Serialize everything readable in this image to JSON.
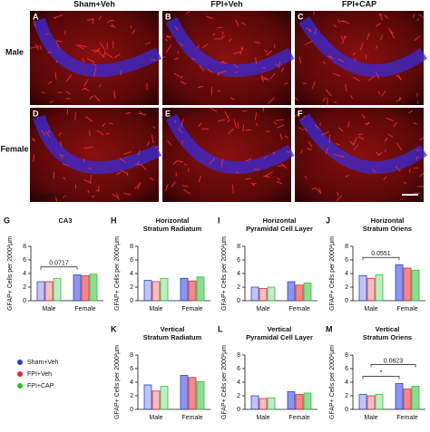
{
  "figure": {
    "columns": [
      "Sham+Veh",
      "FPI+Veh",
      "FPI+CAP"
    ],
    "rows": [
      "Male",
      "Female"
    ],
    "panels": [
      "A",
      "B",
      "C",
      "D",
      "E",
      "F"
    ],
    "stain": "GFAP/DAPI"
  },
  "legend": [
    {
      "name": "Sham+Veh",
      "color": "#2b3fd6"
    },
    {
      "name": "FPI+Veh",
      "color": "#e02a2a"
    },
    {
      "name": "FPI+CAP",
      "color": "#2fbf3a"
    }
  ],
  "chart_data": [
    {
      "type": "bar",
      "panel": "G",
      "title": [
        "CA3"
      ],
      "y_label": "GFAP+ Cells per 2000²μm",
      "categories": [
        "Male",
        "Female"
      ],
      "series": [
        {
          "values": [
            2.8,
            3.8
          ]
        },
        {
          "values": [
            2.8,
            3.7
          ]
        },
        {
          "values": [
            3.3,
            3.9
          ]
        }
      ],
      "ylim": [
        0,
        8
      ],
      "yticks": [
        0,
        2,
        4,
        6,
        8
      ],
      "brackets": [
        {
          "label": "0.0717",
          "from": [
            0,
            0
          ],
          "to": [
            0,
            1
          ]
        }
      ]
    },
    {
      "type": "bar",
      "panel": "H",
      "title": [
        "Horizontal",
        "Stratum Radiatum"
      ],
      "y_label": "GFAP+ Cells per 2000²μm",
      "categories": [
        "Male",
        "Female"
      ],
      "series": [
        {
          "values": [
            3.0,
            3.3
          ]
        },
        {
          "values": [
            2.8,
            2.9
          ]
        },
        {
          "values": [
            3.3,
            3.5
          ]
        }
      ],
      "ylim": [
        0,
        8
      ],
      "yticks": [
        0,
        2,
        4,
        6,
        8
      ]
    },
    {
      "type": "bar",
      "panel": "I",
      "title": [
        "Horizontal",
        "Pyramidal Cell Layer"
      ],
      "y_label": "GFAP+ Cells per 2000²μm",
      "categories": [
        "Male",
        "Female"
      ],
      "series": [
        {
          "values": [
            2.0,
            2.8
          ]
        },
        {
          "values": [
            1.8,
            2.3
          ]
        },
        {
          "values": [
            2.0,
            2.6
          ]
        }
      ],
      "ylim": [
        0,
        8
      ],
      "yticks": [
        0,
        2,
        4,
        6,
        8
      ]
    },
    {
      "type": "bar",
      "panel": "J",
      "title": [
        "Horizontal",
        "Stratum Oriens"
      ],
      "y_label": "GFAP+ Cells per 2000²μm",
      "categories": [
        "Male",
        "Female"
      ],
      "series": [
        {
          "values": [
            3.7,
            5.3
          ]
        },
        {
          "values": [
            3.3,
            4.8
          ]
        },
        {
          "values": [
            3.8,
            4.5
          ]
        }
      ],
      "ylim": [
        0,
        8
      ],
      "yticks": [
        0,
        2,
        4,
        6,
        8
      ],
      "brackets": [
        {
          "label": "0.0551",
          "from": [
            0,
            0
          ],
          "to": [
            0,
            1
          ]
        }
      ]
    },
    {
      "type": "bar",
      "panel": "K",
      "title": [
        "Vertical",
        "Stratum Radiatum"
      ],
      "y_label": "GFAP+ Cells per 2000²μm",
      "categories": [
        "Male",
        "Female"
      ],
      "series": [
        {
          "values": [
            3.6,
            5.0
          ]
        },
        {
          "values": [
            2.7,
            4.7
          ]
        },
        {
          "values": [
            3.4,
            4.1
          ]
        }
      ],
      "ylim": [
        0,
        8
      ],
      "yticks": [
        0,
        2,
        4,
        6,
        8
      ]
    },
    {
      "type": "bar",
      "panel": "L",
      "title": [
        "Vertical",
        "Pyramidal Cell Layer"
      ],
      "y_label": "GFAP+ Cells per 2000²μm",
      "categories": [
        "Male",
        "Female"
      ],
      "series": [
        {
          "values": [
            2.0,
            2.6
          ]
        },
        {
          "values": [
            1.6,
            2.2
          ]
        },
        {
          "values": [
            1.7,
            2.4
          ]
        }
      ],
      "ylim": [
        0,
        8
      ],
      "yticks": [
        0,
        2,
        4,
        6,
        8
      ]
    },
    {
      "type": "bar",
      "panel": "M",
      "title": [
        "Vertical",
        "Stratum Oriens"
      ],
      "y_label": "GFAP+ Cells per 2000²μm",
      "categories": [
        "Male",
        "Female"
      ],
      "series": [
        {
          "values": [
            2.2,
            3.8
          ]
        },
        {
          "values": [
            2.0,
            3.0
          ]
        },
        {
          "values": [
            2.2,
            3.4
          ]
        }
      ],
      "ylim": [
        0,
        8
      ],
      "yticks": [
        0,
        2,
        4,
        6,
        8
      ],
      "brackets": [
        {
          "label": "*",
          "from": [
            0,
            0
          ],
          "to": [
            0,
            1
          ]
        },
        {
          "label": "0.0623",
          "from": [
            1,
            0
          ],
          "to": [
            2,
            1
          ]
        }
      ]
    }
  ]
}
